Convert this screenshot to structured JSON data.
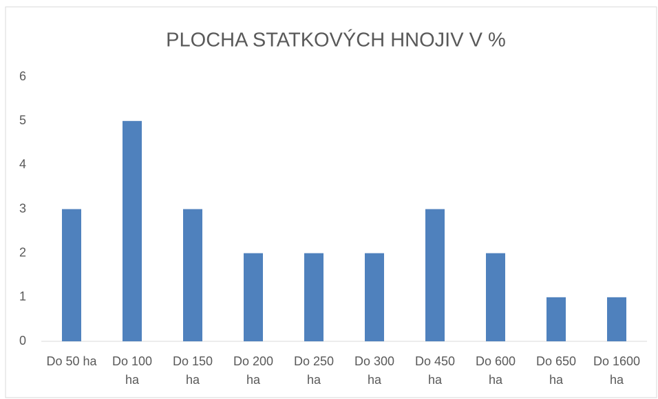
{
  "chart_data": {
    "type": "bar",
    "title": "PLOCHA STATKOVÝCH HNOJIV V %",
    "categories": [
      "Do 50 ha",
      "Do 100 ha",
      "Do 150 ha",
      "Do 200 ha",
      "Do 250 ha",
      "Do 300 ha",
      "Do 450 ha",
      "Do 600 ha",
      "Do 650 ha",
      "Do 1600 ha"
    ],
    "values": [
      3,
      5,
      3,
      2,
      2,
      2,
      3,
      2,
      1,
      1
    ],
    "color": "#4f81bd",
    "ylim": [
      0,
      6
    ],
    "yticks": [
      0,
      1,
      2,
      3,
      4,
      5,
      6
    ],
    "grid": false
  }
}
